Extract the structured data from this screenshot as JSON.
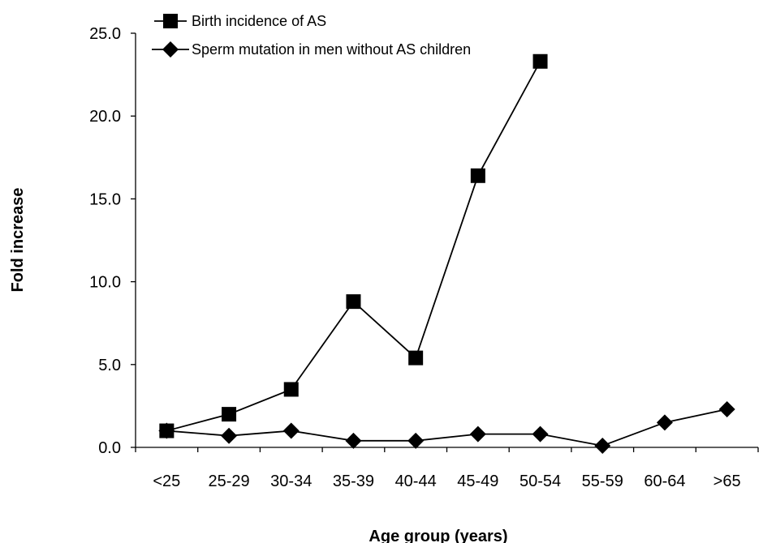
{
  "chart_data": {
    "type": "line",
    "title": "",
    "xlabel": "Age group (years)",
    "ylabel": "Fold increase",
    "categories": [
      "<25",
      "25-29",
      "30-34",
      "35-39",
      "40-44",
      "45-49",
      "50-54",
      "55-59",
      "60-64",
      ">65"
    ],
    "y_ticks": [
      "0.0",
      "5.0",
      "10.0",
      "15.0",
      "20.0",
      "25.0"
    ],
    "ylim": [
      0,
      25
    ],
    "grid": false,
    "legend_position": "top-left",
    "series": [
      {
        "name": "Birth incidence of AS",
        "marker": "square",
        "color": "#000000",
        "values": [
          1.0,
          2.0,
          3.5,
          8.8,
          5.4,
          16.4,
          23.3,
          null,
          null,
          null
        ]
      },
      {
        "name": "Sperm mutation in men without AS children",
        "marker": "diamond",
        "color": "#000000",
        "values": [
          1.0,
          0.7,
          1.0,
          0.4,
          0.4,
          0.8,
          0.8,
          0.1,
          1.5,
          2.3
        ]
      }
    ]
  }
}
